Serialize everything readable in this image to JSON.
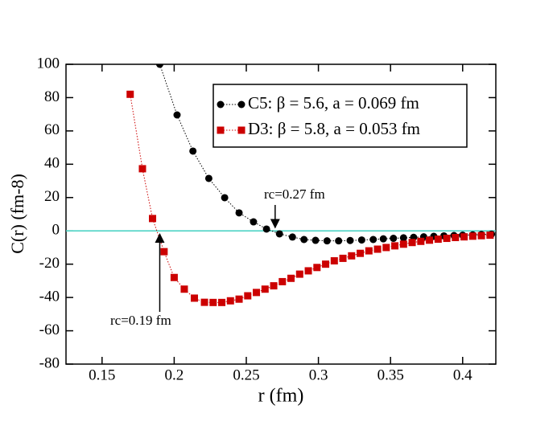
{
  "chart_data": {
    "type": "line",
    "xlabel": "r (fm)",
    "ylabel": "C(r) (fm-8)",
    "xlim": [
      0.125,
      0.423
    ],
    "ylim": [
      -80,
      100
    ],
    "xticks": [
      0.15,
      0.2,
      0.25,
      0.3,
      0.35,
      0.4
    ],
    "yticks": [
      -80,
      -60,
      -40,
      -20,
      0,
      20,
      40,
      60,
      80,
      100
    ],
    "reference_line": {
      "y": 0,
      "color": "#40d0c0"
    },
    "legend": "upper right",
    "series": [
      {
        "name": "C5: β = 5.6, a = 0.069 fm",
        "color": "#000000",
        "marker": "circle",
        "x": [
          0.19,
          0.202,
          0.213,
          0.224,
          0.235,
          0.245,
          0.255,
          0.264,
          0.273,
          0.282,
          0.29,
          0.298,
          0.306,
          0.314,
          0.322,
          0.33,
          0.338,
          0.345,
          0.352,
          0.359,
          0.366,
          0.373,
          0.38,
          0.387,
          0.394,
          0.4,
          0.407,
          0.413,
          0.42
        ],
        "values": [
          100,
          69.6,
          47.9,
          31.5,
          19.9,
          10.8,
          5.4,
          1.1,
          -1.8,
          -3.7,
          -5.2,
          -5.7,
          -6.0,
          -6.0,
          -5.8,
          -5.5,
          -5.2,
          -4.8,
          -4.5,
          -4.2,
          -3.9,
          -3.6,
          -3.3,
          -3.0,
          -2.8,
          -2.6,
          -2.4,
          -2.2,
          -2.0
        ]
      },
      {
        "name": "D3: β = 5.8, a = 0.053 fm",
        "color": "#cc0000",
        "marker": "square",
        "x": [
          0.1695,
          0.178,
          0.185,
          0.193,
          0.2,
          0.207,
          0.214,
          0.221,
          0.227,
          0.233,
          0.239,
          0.245,
          0.251,
          0.257,
          0.263,
          0.269,
          0.275,
          0.281,
          0.287,
          0.293,
          0.299,
          0.305,
          0.311,
          0.317,
          0.323,
          0.329,
          0.335,
          0.341,
          0.347,
          0.353,
          0.359,
          0.365,
          0.371,
          0.377,
          0.383,
          0.389,
          0.395,
          0.401,
          0.407,
          0.413,
          0.419
        ],
        "values": [
          82,
          37.3,
          7.4,
          -12.5,
          -28,
          -35,
          -40.4,
          -42.9,
          -43,
          -43,
          -42,
          -41,
          -39,
          -37,
          -35,
          -33,
          -30.5,
          -28.5,
          -26,
          -24,
          -22,
          -20,
          -18,
          -16.5,
          -15,
          -13.5,
          -12,
          -11,
          -10,
          -9,
          -8,
          -7,
          -6.3,
          -5.6,
          -5,
          -4.5,
          -4,
          -3.6,
          -3.2,
          -2.9,
          -2.6
        ]
      }
    ],
    "annotations": [
      {
        "text": "rc=0.27 fm",
        "x": 0.27,
        "y": 0
      },
      {
        "text": "rc=0.19 fm",
        "x": 0.19,
        "y": 0
      }
    ]
  }
}
